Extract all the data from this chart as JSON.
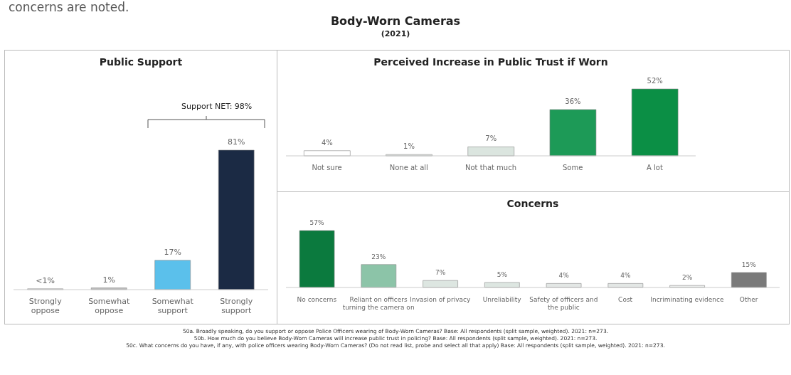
{
  "chart_data": [
    {
      "type": "bar",
      "title": "Public Support",
      "categories": [
        "Strongly oppose",
        "Somewhat oppose",
        "Somewhat support",
        "Strongly support"
      ],
      "values": [
        0.5,
        1,
        17,
        81
      ],
      "value_labels": [
        "<1%",
        "1%",
        "17%",
        "81%"
      ],
      "colors": [
        "#eeeeee",
        "#bdbdbd",
        "#5bc0eb",
        "#1b2a44"
      ],
      "annotations": [
        "concerns are noted.",
        "Body-Worn Cameras",
        "(2021)",
        "Support NET: 98%",
        "50a. Broadly speaking, do you support or oppose Police Officers wearing of Body-Worn Cameras? Base: All respondents (split sample, weighted). 2021: n=273."
      ]
    },
    {
      "type": "bar",
      "title": "Perceived Increase in Public Trust if Worn",
      "categories": [
        "Not sure",
        "None at all",
        "Not that much",
        "Some",
        "A lot"
      ],
      "values": [
        4,
        1,
        7,
        36,
        52
      ],
      "value_labels": [
        "4%",
        "1%",
        "7%",
        "36%",
        "52%"
      ],
      "colors": [
        "#ffffff",
        "#e3e8e5",
        "#dbe5df",
        "#1d9a57",
        "#0b8f45"
      ],
      "annotations": [
        "50b. How much do you believe Body-Worn Cameras will increase public trust in policing? Base: All respondents (split sample, weighted). 2021: n=273."
      ]
    },
    {
      "type": "bar",
      "title": "Concerns",
      "categories": [
        "No concerns",
        "Reliant on officers turning the camera on",
        "Invasion of privacy",
        "Unreliability",
        "Safety of officers and the public",
        "Cost",
        "Incriminating evidence",
        "Other"
      ],
      "values": [
        57,
        23,
        7,
        5,
        4,
        4,
        2,
        15
      ],
      "value_labels": [
        "57%",
        "23%",
        "7%",
        "5%",
        "4%",
        "4%",
        "2%",
        "15%"
      ],
      "colors": [
        "#0b7a3e",
        "#8cc4a8",
        "#dde6e1",
        "#dde6e1",
        "#e3e7e5",
        "#e3e7e5",
        "#eceeed",
        "#7a7a7a"
      ],
      "annotations": [
        "50c. What concerns do you have, if any, with police officers wearing Body-Worn Cameras? (Do not read list, probe and select all that apply) Base: All respondents (split sample, weighted). 2021: n=273."
      ]
    }
  ]
}
